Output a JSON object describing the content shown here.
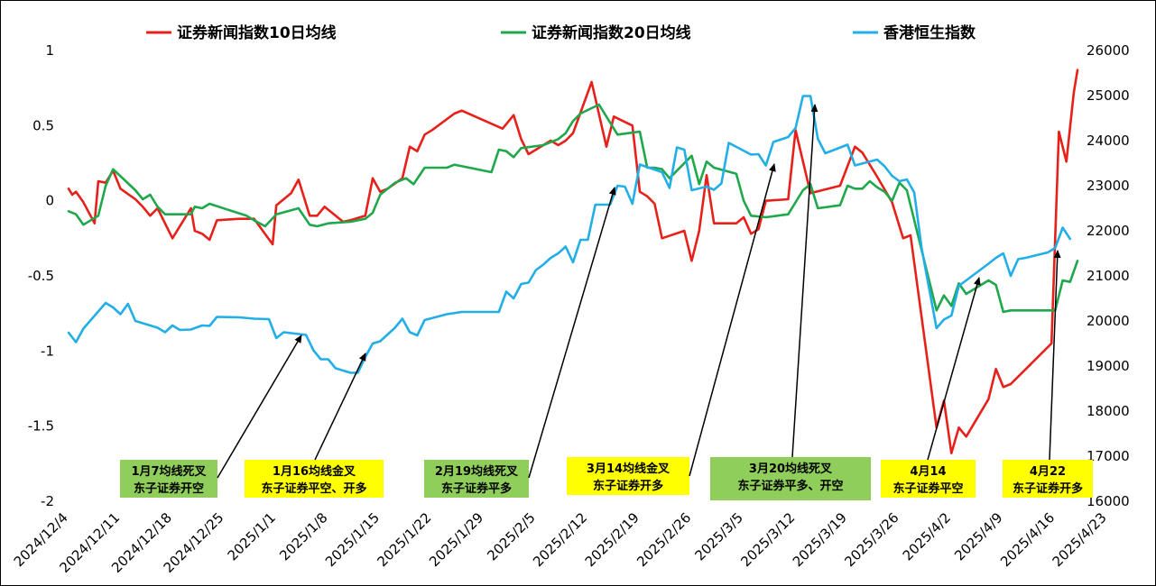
{
  "chart_data": {
    "type": "line",
    "x": [
      "2024/12/4",
      "2024/12/11",
      "2024/12/18",
      "2024/12/25",
      "2025/1/1",
      "2025/1/8",
      "2025/1/15",
      "2025/1/22",
      "2025/1/29",
      "2025/2/5",
      "2025/2/12",
      "2025/2/19",
      "2025/2/26",
      "2025/3/5",
      "2025/3/12",
      "2025/3/19",
      "2025/3/26",
      "2025/4/2",
      "2025/4/9",
      "2025/4/16",
      "2025/4/23"
    ],
    "ylim_left": [
      -2,
      1
    ],
    "ylim_right": [
      16000,
      26000
    ],
    "yticks_left": [
      "1",
      "0.5",
      "0",
      "-0.5",
      "-1",
      "-1.5",
      "-2"
    ],
    "yticks_right": [
      "26000",
      "25000",
      "24000",
      "23000",
      "22000",
      "21000",
      "20000",
      "19000",
      "18000",
      "17000",
      "16000"
    ],
    "grid": false,
    "legend_position": "top",
    "series": [
      {
        "name": "证券新闻指数10日均线",
        "color": "#e8201a",
        "axis": "left",
        "points": [
          [
            0,
            0.08
          ],
          [
            0.5,
            0.04
          ],
          [
            1,
            0.06
          ],
          [
            2,
            -0.01
          ],
          [
            3.5,
            -0.15
          ],
          [
            4,
            0.13
          ],
          [
            5,
            0.12
          ],
          [
            6,
            0.2
          ],
          [
            7,
            0.08
          ],
          [
            9,
            0.01
          ],
          [
            10,
            -0.04
          ],
          [
            11,
            -0.1
          ],
          [
            12,
            -0.05
          ],
          [
            14,
            -0.25
          ],
          [
            16.5,
            -0.05
          ],
          [
            17,
            -0.2
          ],
          [
            18,
            -0.22
          ],
          [
            19,
            -0.26
          ],
          [
            20,
            -0.13
          ],
          [
            23,
            -0.12
          ],
          [
            25,
            -0.12
          ],
          [
            27.5,
            -0.29
          ],
          [
            28,
            -0.03
          ],
          [
            30,
            0.05
          ],
          [
            31,
            0.14
          ],
          [
            32.5,
            -0.1
          ],
          [
            33.5,
            -0.1
          ],
          [
            34.5,
            -0.04
          ],
          [
            37,
            -0.14
          ],
          [
            38,
            -0.13
          ],
          [
            40,
            -0.1
          ],
          [
            41,
            0.15
          ],
          [
            42,
            0.06
          ],
          [
            43,
            0.08
          ],
          [
            45,
            0.15
          ],
          [
            46,
            0.36
          ],
          [
            47,
            0.33
          ],
          [
            48,
            0.44
          ],
          [
            49,
            0.47
          ],
          [
            52,
            0.58
          ],
          [
            53,
            0.6
          ],
          [
            58.5,
            0.48
          ],
          [
            60,
            0.57
          ],
          [
            61,
            0.41
          ],
          [
            62,
            0.31
          ],
          [
            64,
            0.37
          ],
          [
            65,
            0.4
          ],
          [
            66,
            0.37
          ],
          [
            67,
            0.4
          ],
          [
            68,
            0.45
          ],
          [
            70.5,
            0.79
          ],
          [
            72.5,
            0.36
          ],
          [
            73.5,
            0.56
          ],
          [
            76,
            0.5
          ],
          [
            77,
            0.06
          ],
          [
            78,
            0.03
          ],
          [
            79,
            -0.02
          ],
          [
            80,
            -0.25
          ],
          [
            83,
            -0.2
          ],
          [
            84,
            -0.4
          ],
          [
            85,
            -0.2
          ],
          [
            86,
            0.17
          ],
          [
            87,
            -0.15
          ],
          [
            90,
            -0.15
          ],
          [
            91,
            -0.11
          ],
          [
            92,
            -0.22
          ],
          [
            93,
            -0.19
          ],
          [
            94,
            0
          ],
          [
            97,
            0.01
          ],
          [
            98,
            0.47
          ],
          [
            100,
            0.05
          ],
          [
            104,
            0.1
          ],
          [
            106,
            0.36
          ],
          [
            107,
            0.32
          ],
          [
            109,
            0.16
          ],
          [
            111,
            -0.01
          ],
          [
            112.5,
            -0.25
          ],
          [
            113.5,
            -0.23
          ],
          [
            117,
            -1.51
          ],
          [
            118,
            -1.33
          ],
          [
            119,
            -1.68
          ],
          [
            120,
            -1.51
          ],
          [
            121,
            -1.57
          ],
          [
            124,
            -1.32
          ],
          [
            125,
            -1.12
          ],
          [
            126,
            -1.24
          ],
          [
            127,
            -1.22
          ],
          [
            132.5,
            -0.95
          ],
          [
            133.5,
            0.46
          ],
          [
            134.5,
            0.26
          ],
          [
            135.5,
            0.72
          ],
          [
            136,
            0.87
          ]
        ]
      },
      {
        "name": "证券新闻指数20日均线",
        "color": "#1fa84b",
        "axis": "left",
        "points": [
          [
            0,
            -0.07
          ],
          [
            1,
            -0.09
          ],
          [
            2,
            -0.16
          ],
          [
            4,
            -0.1
          ],
          [
            5,
            0.1
          ],
          [
            6,
            0.21
          ],
          [
            9,
            0.07
          ],
          [
            10,
            0.01
          ],
          [
            11,
            0.04
          ],
          [
            12,
            -0.04
          ],
          [
            13,
            -0.09
          ],
          [
            16.5,
            -0.09
          ],
          [
            17,
            -0.04
          ],
          [
            18,
            -0.05
          ],
          [
            19,
            -0.02
          ],
          [
            21.5,
            -0.06
          ],
          [
            24,
            -0.1
          ],
          [
            25,
            -0.13
          ],
          [
            26.5,
            -0.17
          ],
          [
            28,
            -0.09
          ],
          [
            31,
            -0.05
          ],
          [
            32.5,
            -0.16
          ],
          [
            33.5,
            -0.17
          ],
          [
            35,
            -0.15
          ],
          [
            38,
            -0.14
          ],
          [
            40,
            -0.12
          ],
          [
            41,
            -0.08
          ],
          [
            42,
            0.04
          ],
          [
            44,
            0.12
          ],
          [
            45.5,
            0.15
          ],
          [
            46.5,
            0.11
          ],
          [
            48,
            0.22
          ],
          [
            51,
            0.22
          ],
          [
            52,
            0.24
          ],
          [
            57,
            0.19
          ],
          [
            58,
            0.34
          ],
          [
            59,
            0.33
          ],
          [
            60,
            0.29
          ],
          [
            61,
            0.35
          ],
          [
            64,
            0.37
          ],
          [
            65,
            0.39
          ],
          [
            66,
            0.41
          ],
          [
            67,
            0.45
          ],
          [
            68,
            0.53
          ],
          [
            69,
            0.58
          ],
          [
            71.5,
            0.64
          ],
          [
            73,
            0.52
          ],
          [
            74,
            0.44
          ],
          [
            77,
            0.46
          ],
          [
            78,
            0.22
          ],
          [
            79,
            0.22
          ],
          [
            80,
            0.21
          ],
          [
            81,
            0.15
          ],
          [
            84,
            0.3
          ],
          [
            85,
            0.11
          ],
          [
            86,
            0.26
          ],
          [
            87,
            0.22
          ],
          [
            90,
            0.18
          ],
          [
            91,
            0
          ],
          [
            92,
            -0.1
          ],
          [
            94,
            -0.11
          ],
          [
            97,
            -0.09
          ],
          [
            99,
            0.07
          ],
          [
            100,
            0.11
          ],
          [
            101,
            -0.05
          ],
          [
            104,
            -0.03
          ],
          [
            105,
            0.1
          ],
          [
            106,
            0.08
          ],
          [
            107,
            0.08
          ],
          [
            108,
            0.13
          ],
          [
            109,
            0.09
          ],
          [
            110,
            0.06
          ],
          [
            111,
            0
          ],
          [
            112,
            0.12
          ],
          [
            113,
            0.07
          ],
          [
            117,
            -0.73
          ],
          [
            118,
            -0.63
          ],
          [
            119,
            -0.7
          ],
          [
            120,
            -0.55
          ],
          [
            121,
            -0.62
          ],
          [
            124,
            -0.53
          ],
          [
            125,
            -0.56
          ],
          [
            126,
            -0.74
          ],
          [
            127,
            -0.73
          ],
          [
            133,
            -0.73
          ],
          [
            134,
            -0.53
          ],
          [
            135,
            -0.54
          ],
          [
            136,
            -0.4
          ]
        ]
      },
      {
        "name": "香港恒生指数",
        "color": "#22aee6",
        "axis": "right",
        "points": [
          [
            0,
            19740
          ],
          [
            1,
            19530
          ],
          [
            2,
            19830
          ],
          [
            5,
            20400
          ],
          [
            6,
            20300
          ],
          [
            7,
            20150
          ],
          [
            8,
            20380
          ],
          [
            9,
            20000
          ],
          [
            12,
            19850
          ],
          [
            13,
            19750
          ],
          [
            14,
            19900
          ],
          [
            15,
            19800
          ],
          [
            16.5,
            19810
          ],
          [
            18,
            19900
          ],
          [
            19,
            19890
          ],
          [
            20,
            20090
          ],
          [
            23,
            20080
          ],
          [
            25,
            20050
          ],
          [
            27,
            20040
          ],
          [
            28,
            19620
          ],
          [
            29,
            19750
          ],
          [
            32,
            19690
          ],
          [
            33,
            19350
          ],
          [
            34,
            19150
          ],
          [
            35,
            19150
          ],
          [
            36,
            18950
          ],
          [
            38,
            18850
          ],
          [
            39,
            18850
          ],
          [
            40,
            19200
          ],
          [
            41,
            19500
          ],
          [
            42,
            19550
          ],
          [
            44,
            19850
          ],
          [
            45,
            20050
          ],
          [
            46,
            19750
          ],
          [
            47,
            19680
          ],
          [
            48,
            20020
          ],
          [
            51,
            20150
          ],
          [
            53,
            20200
          ],
          [
            58,
            20200
          ],
          [
            59,
            20650
          ],
          [
            60,
            20500
          ],
          [
            61,
            20820
          ],
          [
            62,
            20850
          ],
          [
            63,
            21130
          ],
          [
            64,
            21250
          ],
          [
            65,
            21400
          ],
          [
            66,
            21500
          ],
          [
            67,
            21650
          ],
          [
            68,
            21300
          ],
          [
            69,
            21800
          ],
          [
            70,
            21800
          ],
          [
            71,
            22580
          ],
          [
            72,
            22580
          ],
          [
            73,
            22580
          ],
          [
            74,
            23000
          ],
          [
            75,
            22980
          ],
          [
            76,
            22600
          ],
          [
            77,
            23470
          ],
          [
            80,
            23300
          ],
          [
            81,
            22950
          ],
          [
            82,
            23850
          ],
          [
            83,
            23800
          ],
          [
            84,
            22900
          ],
          [
            86,
            22980
          ],
          [
            87,
            22910
          ],
          [
            88,
            23050
          ],
          [
            89,
            23950
          ],
          [
            92,
            23690
          ],
          [
            93,
            23700
          ],
          [
            94,
            23450
          ],
          [
            95,
            23970
          ],
          [
            97,
            24080
          ],
          [
            98,
            24280
          ],
          [
            99,
            24990
          ],
          [
            100,
            24990
          ],
          [
            101,
            24040
          ],
          [
            102,
            23720
          ],
          [
            105,
            23910
          ],
          [
            106,
            23450
          ],
          [
            109,
            23580
          ],
          [
            110,
            23430
          ],
          [
            111,
            23220
          ],
          [
            112,
            23100
          ],
          [
            113,
            23140
          ],
          [
            114,
            22850
          ],
          [
            115,
            21600
          ],
          [
            117,
            19840
          ],
          [
            118,
            20030
          ],
          [
            119,
            20120
          ],
          [
            120,
            20780
          ],
          [
            121,
            20900
          ],
          [
            124,
            21270
          ],
          [
            125,
            21400
          ],
          [
            126,
            21500
          ],
          [
            127,
            21000
          ],
          [
            128,
            21370
          ],
          [
            129,
            21400
          ],
          [
            132,
            21520
          ],
          [
            133,
            21620
          ],
          [
            134,
            22070
          ],
          [
            135,
            21820
          ]
        ]
      }
    ],
    "annotations": [
      {
        "lines": [
          "1月7均线死叉",
          "东子证券开空"
        ],
        "bg": "#8fce5a"
      },
      {
        "lines": [
          "1月16均线金叉",
          "东子证券平空、开多"
        ],
        "bg": "#ffff00"
      },
      {
        "lines": [
          "2月19均线死叉",
          "东子证券平多"
        ],
        "bg": "#8fce5a"
      },
      {
        "lines": [
          "3月14均线金叉",
          "东子证券开多"
        ],
        "bg": "#ffff00"
      },
      {
        "lines": [
          "3月20均线死叉",
          "东子证券平多、开空"
        ],
        "bg": "#8fce5a"
      },
      {
        "lines": [
          "4月14",
          "东子证券平空"
        ],
        "bg": "#ffff00"
      },
      {
        "lines": [
          "4月22",
          "东子证券开多"
        ],
        "bg": "#ffff00"
      }
    ]
  }
}
